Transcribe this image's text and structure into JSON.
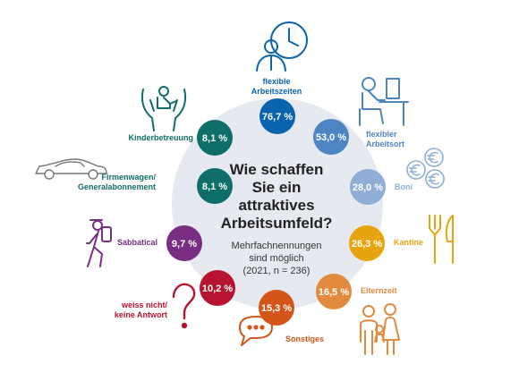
{
  "chart_data": {
    "type": "radial-bubble",
    "title_lines": [
      "Wie schaffen",
      "Sie ein",
      "attraktives",
      "Arbeitsumfeld?"
    ],
    "subtitle_lines": [
      "Mehrfachnennungen",
      "sind möglich",
      "(2021, n = 236)"
    ],
    "unit": "%",
    "categories": [
      {
        "label_lines": [
          "flexible",
          "Arbeitszeiten"
        ],
        "value_label": "76,7 %",
        "value": 76.7,
        "color": "#0a63ad",
        "icon": "clock-person-icon"
      },
      {
        "label_lines": [
          "flexibler",
          "Arbeitsort"
        ],
        "value_label": "53,0 %",
        "value": 53.0,
        "color": "#4d85c3",
        "icon": "desk-worker-icon"
      },
      {
        "label_lines": [
          "Boni"
        ],
        "value_label": "28,0 %",
        "value": 28.0,
        "color": "#8eaed8",
        "icon": "euro-coins-icon"
      },
      {
        "label_lines": [
          "Kantine"
        ],
        "value_label": "26,3 %",
        "value": 26.3,
        "color": "#e8a40f",
        "icon": "cutlery-icon"
      },
      {
        "label_lines": [
          "Elternzeit"
        ],
        "value_label": "16,5 %",
        "value": 16.5,
        "color": "#e28b3f",
        "icon": "family-icon"
      },
      {
        "label_lines": [
          "Sonstiges"
        ],
        "value_label": "15,3 %",
        "value": 15.3,
        "color": "#d45519",
        "icon": "speech-bubble-icon"
      },
      {
        "label_lines": [
          "weiss nicht/",
          "keine Antwort"
        ],
        "value_label": "10,2 %",
        "value": 10.2,
        "color": "#b8142f",
        "icon": "question-mark-icon"
      },
      {
        "label_lines": [
          "Sabbatical"
        ],
        "value_label": "9,7 %",
        "value": 9.7,
        "color": "#7a2e83",
        "icon": "hiker-icon"
      },
      {
        "label_lines": [
          "Firmenwagen/",
          "Generalabonnement"
        ],
        "value_label": "8,1 %",
        "value": 8.1,
        "color": "#0f6e6a",
        "icon": "car-icon"
      },
      {
        "label_lines": [
          "Kinderbetreuung"
        ],
        "value_label": "8,1 %",
        "value": 8.1,
        "color": "#0f6e6a",
        "icon": "childcare-hands-icon"
      }
    ],
    "colors": {
      "hub": "#e6e9f0",
      "title": "#222222",
      "subtitle": "#333333"
    }
  }
}
